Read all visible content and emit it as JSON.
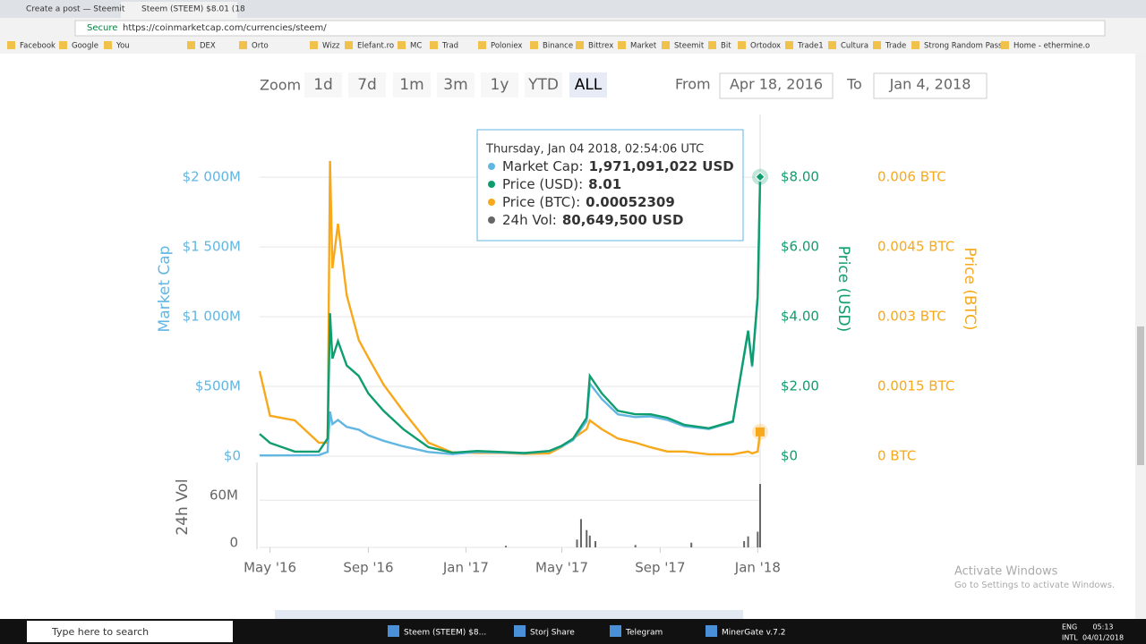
{
  "browser": {
    "tabs": [
      "Create a post — Steemit",
      "Steem (STEEM) $8.01 (18"
    ],
    "secure": "Secure",
    "url": "https://coinmarketcap.com/currencies/steem/",
    "bookmarks": [
      "Facebook",
      "Google",
      "You",
      "DEX",
      "Orto",
      "Wizz",
      "Elefant.ro",
      "MC",
      "Trad",
      "Poloniex",
      "Binance",
      "Bittrex",
      "Market",
      "Steemit",
      "Bit",
      "Ortodox",
      "Trade1",
      "Cultura",
      "Trade",
      "Strong Random Pass",
      "Home - ethermine.o"
    ]
  },
  "controls": {
    "zoom": "Zoom",
    "buttons": [
      "1d",
      "7d",
      "1m",
      "3m",
      "1y",
      "YTD",
      "ALL"
    ],
    "from": "From",
    "from_date": "Apr 18, 2016",
    "to": "To",
    "to_date": "Jan 4, 2018"
  },
  "chart_data": {
    "type": "line",
    "x": [
      "2016-04-18",
      "2016-05-01",
      "2016-06-01",
      "2016-07-01",
      "2016-07-12",
      "2016-07-15",
      "2016-07-18",
      "2016-07-25",
      "2016-08-05",
      "2016-08-20",
      "2016-09-01",
      "2016-09-20",
      "2016-10-15",
      "2016-11-15",
      "2016-12-15",
      "2017-01-15",
      "2017-02-15",
      "2017-03-15",
      "2017-04-15",
      "2017-05-01",
      "2017-05-15",
      "2017-06-01",
      "2017-06-05",
      "2017-06-20",
      "2017-07-10",
      "2017-08-01",
      "2017-08-20",
      "2017-09-10",
      "2017-10-01",
      "2017-11-01",
      "2017-12-01",
      "2017-12-20",
      "2017-12-25",
      "2018-01-01",
      "2018-01-04"
    ],
    "xlim": [
      "2016-04-18",
      "2018-01-04"
    ],
    "xticks": [
      {
        "value": "2016-05-01",
        "label": "May '16"
      },
      {
        "value": "2016-09-01",
        "label": "Sep '16"
      },
      {
        "value": "2017-01-01",
        "label": "Jan '17"
      },
      {
        "value": "2017-05-01",
        "label": "May '17"
      },
      {
        "value": "2017-09-01",
        "label": "Sep '17"
      },
      {
        "value": "2018-01-01",
        "label": "Jan '18"
      }
    ],
    "ylabel": "Market Cap",
    "ylim": [
      0,
      2450000000
    ],
    "yticks": [
      {
        "value": 0,
        "label": "$0"
      },
      {
        "value": 500000000,
        "label": "$500M"
      },
      {
        "value": 1000000000,
        "label": "$1 000M"
      },
      {
        "value": 1500000000,
        "label": "$1 500M"
      },
      {
        "value": 2000000000,
        "label": "$2 000M"
      }
    ],
    "y2label": "Price (USD)",
    "y2lim": [
      0,
      9.8
    ],
    "y2ticks": [
      {
        "value": 0,
        "label": "$0"
      },
      {
        "value": 2,
        "label": "$2.00"
      },
      {
        "value": 4,
        "label": "$4.00"
      },
      {
        "value": 6,
        "label": "$6.00"
      },
      {
        "value": 8,
        "label": "$8.00"
      }
    ],
    "y3label": "Price (BTC)",
    "y3lim": [
      0,
      0.00735
    ],
    "y3ticks": [
      {
        "value": 0,
        "label": "0 BTC"
      },
      {
        "value": 0.0015,
        "label": "0.0015 BTC"
      },
      {
        "value": 0.003,
        "label": "0.003 BTC"
      },
      {
        "value": 0.0045,
        "label": "0.0045 BTC"
      },
      {
        "value": 0.006,
        "label": "0.006 BTC"
      }
    ],
    "grid": true,
    "series": [
      {
        "name": "Price (BTC)",
        "color": "#f7a81b",
        "axis": "y3",
        "values": [
          0.00183,
          0.00087,
          0.00077,
          0.00029,
          0.00029,
          0.00635,
          0.00404,
          0.005,
          0.00346,
          0.0025,
          0.00212,
          0.00154,
          0.00096,
          0.00029,
          8e-05,
          7e-05,
          7e-05,
          5e-05,
          6e-05,
          0.0002,
          0.00038,
          0.00058,
          0.00077,
          0.00058,
          0.00038,
          0.00029,
          0.00019,
          0.0001,
          0.0001,
          4e-05,
          4e-05,
          0.0001,
          6e-05,
          0.0001,
          0.00052309
        ]
      },
      {
        "name": "Market Cap",
        "color": "#62b6e2",
        "axis": "y",
        "values": [
          5000000,
          5000000,
          6000000,
          8000000,
          30000000,
          320000000,
          230000000,
          260000000,
          210000000,
          190000000,
          150000000,
          110000000,
          70000000,
          30000000,
          15000000,
          30000000,
          25000000,
          20000000,
          35000000,
          70000000,
          115000000,
          250000000,
          520000000,
          410000000,
          300000000,
          280000000,
          285000000,
          260000000,
          215000000,
          195000000,
          245000000,
          890000000,
          640000000,
          1130000000,
          1971091022
        ]
      },
      {
        "name": "Price (USD)",
        "color": "#0f9d6f",
        "axis": "y2",
        "values": [
          0.64,
          0.38,
          0.13,
          0.13,
          0.51,
          4.1,
          2.8,
          3.3,
          2.6,
          2.3,
          1.8,
          1.3,
          0.77,
          0.26,
          0.1,
          0.15,
          0.12,
          0.09,
          0.15,
          0.3,
          0.5,
          1.1,
          2.3,
          1.8,
          1.3,
          1.2,
          1.2,
          1.1,
          0.9,
          0.8,
          1.0,
          3.6,
          2.6,
          4.6,
          8.01
        ]
      }
    ],
    "volume": {
      "name": "24h Vol",
      "color": "#666666",
      "x": [
        "2017-02-20",
        "2017-05-20",
        "2017-05-25",
        "2017-06-01",
        "2017-06-05",
        "2017-06-12",
        "2017-08-01",
        "2017-10-10",
        "2017-12-15",
        "2017-12-20",
        "2018-01-01",
        "2018-01-04"
      ],
      "values": [
        2000000,
        10000000,
        36000000,
        22000000,
        15000000,
        8000000,
        3000000,
        6000000,
        8000000,
        14000000,
        20000000,
        80649500
      ],
      "ylim": [
        0,
        108000000
      ],
      "yticks": [
        0,
        {
          "value": 60000000,
          "label": "60M"
        }
      ]
    },
    "tooltip": {
      "date": "Thursday, Jan 04 2018, 02:54:06 UTC",
      "rows": [
        [
          "Market Cap:",
          "1,971,091,022 USD"
        ],
        [
          "Price (USD):",
          "8.01"
        ],
        [
          "Price (BTC):",
          "0.00052309"
        ],
        [
          "24h Vol:",
          "80,649,500 USD"
        ]
      ]
    }
  },
  "watermark": {
    "title": "Activate Windows",
    "text": "Go to Settings to activate Windows."
  },
  "taskbar": {
    "search": "Type here to search",
    "apps": [
      "Steem (STEEM) $8...",
      "Storj Share",
      "Telegram",
      "MinerGate v.7.2"
    ],
    "lang": "ENG",
    "layout": "INTL",
    "time": "05:13",
    "date": "04/01/2018"
  }
}
